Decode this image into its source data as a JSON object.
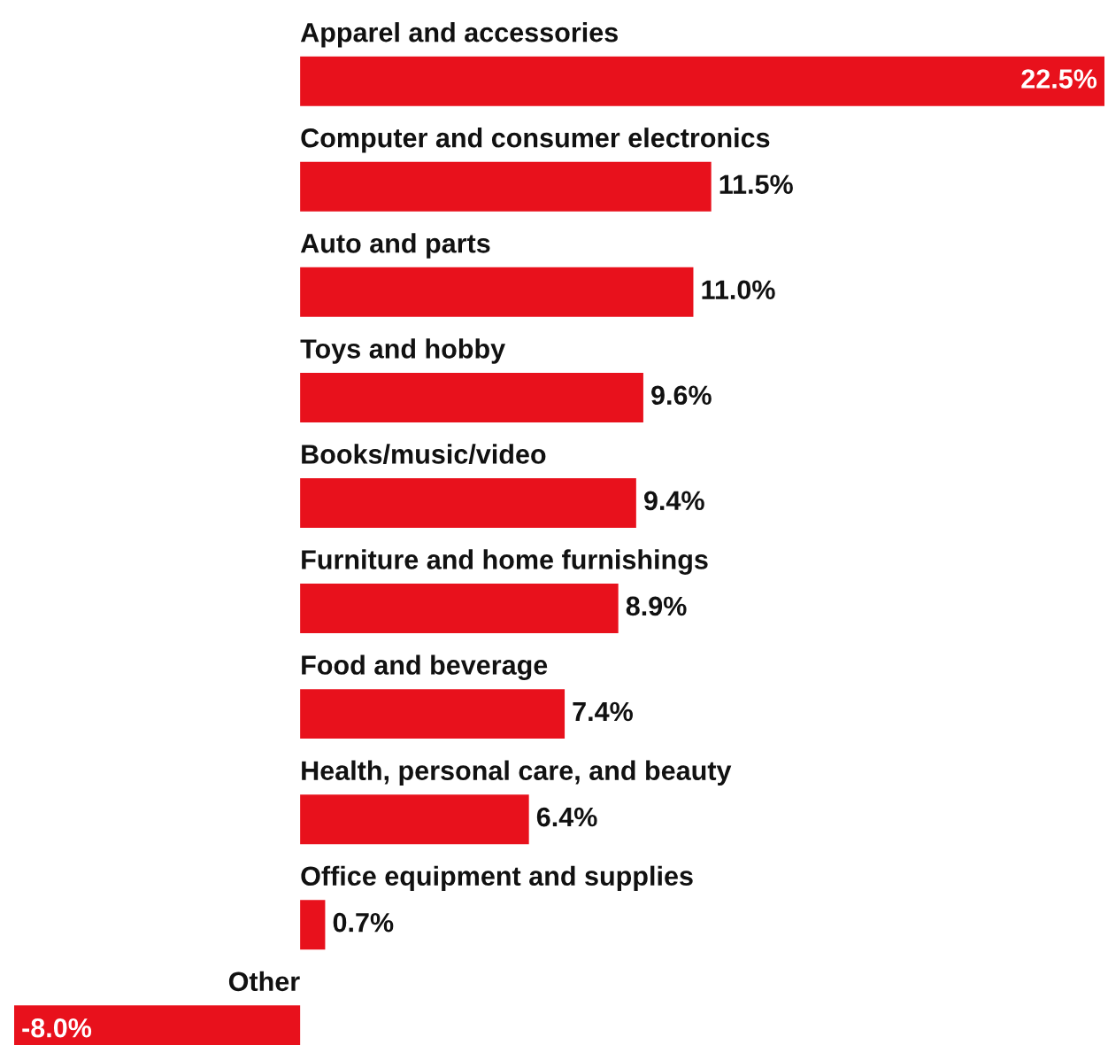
{
  "chart_data": {
    "type": "bar",
    "orientation": "horizontal",
    "categories": [
      "Apparel and accessories",
      "Computer and consumer electronics",
      "Auto and parts",
      "Toys and hobby",
      "Books/music/video",
      "Furniture and home furnishings",
      "Food and beverage",
      "Health, personal care, and beauty",
      "Office equipment and supplies",
      "Other"
    ],
    "values": [
      22.5,
      11.5,
      11.0,
      9.6,
      9.4,
      8.9,
      7.4,
      6.4,
      0.7,
      -8.0
    ],
    "value_labels": [
      "22.5%",
      "11.5%",
      "11.0%",
      "9.6%",
      "9.4%",
      "8.9%",
      "7.4%",
      "6.4%",
      "0.7%",
      "-8.0%"
    ],
    "color": "#e8111c",
    "xlim": [
      -8.0,
      22.5
    ]
  }
}
